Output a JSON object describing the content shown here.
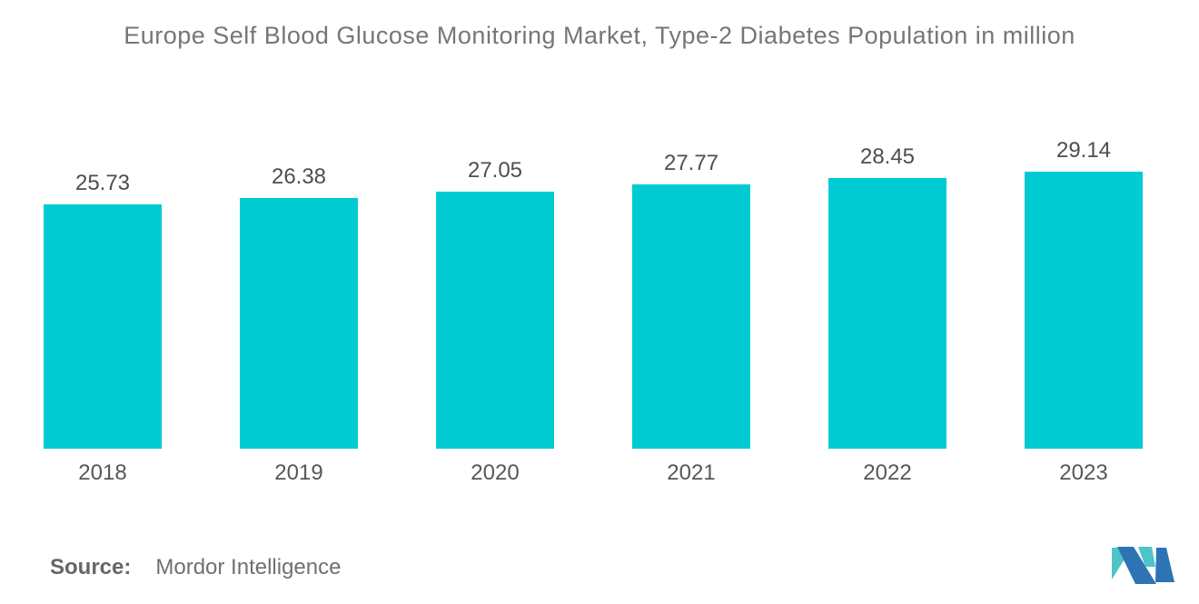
{
  "title": "Europe Self Blood Glucose Monitoring Market, Type-2 Diabetes Population in million",
  "chart_data": {
    "type": "bar",
    "categories": [
      "2018",
      "2019",
      "2020",
      "2021",
      "2022",
      "2023"
    ],
    "values": [
      25.73,
      26.38,
      27.05,
      27.77,
      28.45,
      29.14
    ],
    "title": "Europe Self Blood Glucose Monitoring Market, Type-2 Diabetes Population in million",
    "xlabel": "",
    "ylabel": "",
    "ylim": [
      0,
      29.14
    ],
    "grid": false,
    "legend": "none",
    "value_labels_shown": true,
    "bar_color": "#00CBD2"
  },
  "source": {
    "label": "Source:",
    "name": "Mordor Intelligence"
  },
  "logo": {
    "name": "mordor-intelligence-logo",
    "blue": "#2E74B5",
    "teal": "#4FC4C8"
  }
}
